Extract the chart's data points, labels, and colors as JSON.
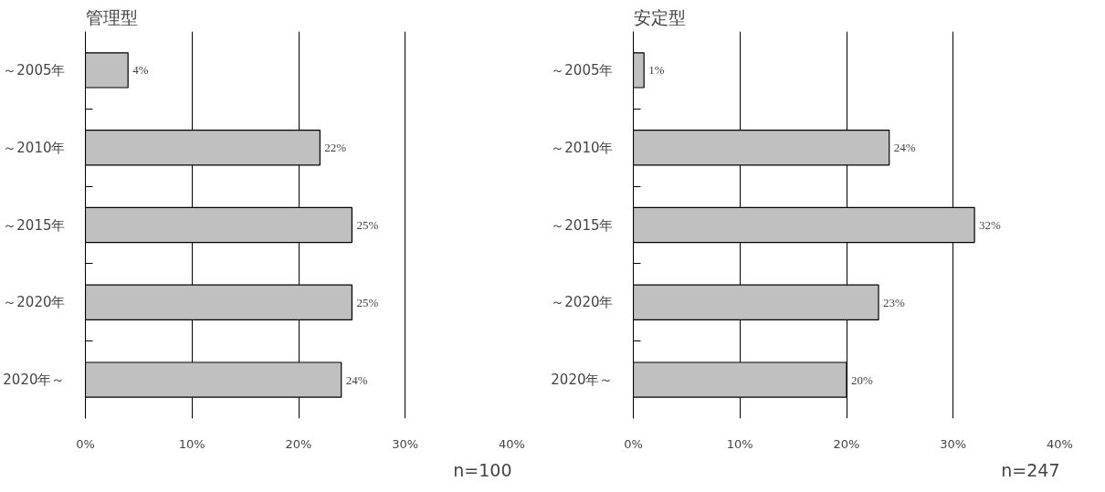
{
  "chart_data": [
    {
      "type": "bar",
      "orientation": "horizontal",
      "title": "管理型",
      "categories": [
        "～2005年",
        "～2010年",
        "～2015年",
        "～2020年",
        "2020年～"
      ],
      "values": [
        4,
        22,
        25,
        25,
        24
      ],
      "value_labels": [
        "4%",
        "22%",
        "25%",
        "25%",
        "24%"
      ],
      "color": "#c0c0c0",
      "xlim": [
        0,
        40
      ],
      "xticks": [
        {
          "value": 0,
          "label": "0%"
        },
        {
          "value": 10,
          "label": "10%"
        },
        {
          "value": 20,
          "label": "20%"
        },
        {
          "value": 30,
          "label": "30%"
        },
        {
          "value": 40,
          "label": "40%"
        }
      ],
      "grid": "x",
      "annotations": [
        "n=100"
      ]
    },
    {
      "type": "bar",
      "orientation": "horizontal",
      "title": "安定型",
      "categories": [
        "～2005年",
        "～2010年",
        "～2015年",
        "～2020年",
        "2020年～"
      ],
      "values": [
        1,
        24,
        32,
        23,
        20
      ],
      "value_labels": [
        "1%",
        "24%",
        "32%",
        "23%",
        "20%"
      ],
      "color": "#c0c0c0",
      "xlim": [
        0,
        40
      ],
      "xticks": [
        {
          "value": 0,
          "label": "0%"
        },
        {
          "value": 10,
          "label": "10%"
        },
        {
          "value": 20,
          "label": "20%"
        },
        {
          "value": 30,
          "label": "30%"
        },
        {
          "value": 40,
          "label": "40%"
        }
      ],
      "grid": "x",
      "annotations": [
        "n=247"
      ]
    }
  ]
}
